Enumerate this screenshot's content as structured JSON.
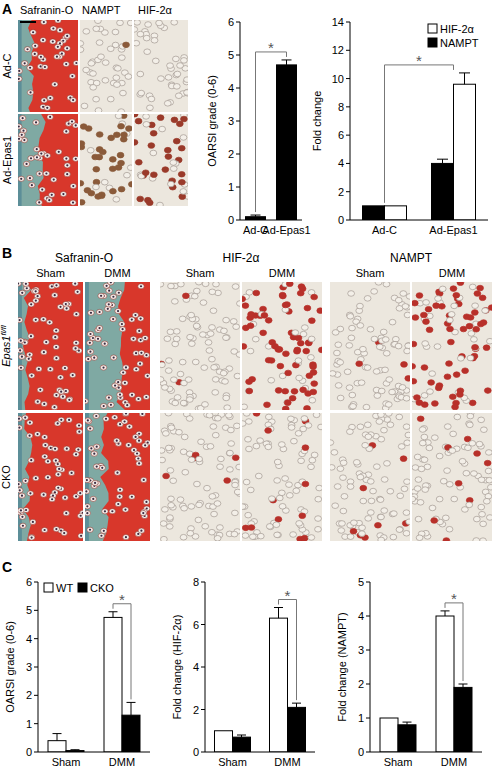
{
  "chart_data": [
    {
      "type": "bar",
      "y_label": "OARSI grade (0-6)",
      "categories": [
        "Ad-C",
        "Ad-Epas1"
      ],
      "values": [
        0.1,
        4.7
      ],
      "errors": [
        0.05,
        0.15
      ],
      "color": "#000000",
      "ylim": [
        0,
        6
      ],
      "yticks": [
        0,
        1,
        2,
        3,
        4,
        5,
        6
      ],
      "annotations": [
        {
          "text": "*",
          "categories": [
            "Ad-C",
            "Ad-Epas1"
          ]
        }
      ]
    },
    {
      "type": "bar",
      "y_label": "Fold change",
      "categories": [
        "Ad-C",
        "Ad-Epas1"
      ],
      "series": [
        {
          "name": "NAMPT",
          "color": "#000000",
          "values": [
            1,
            4
          ],
          "errors": [
            null,
            0.3
          ]
        },
        {
          "name": "HIF-2α",
          "color": "#ffffff",
          "values": [
            1,
            9.6
          ],
          "errors": [
            null,
            0.8
          ]
        }
      ],
      "ylim": [
        0,
        14
      ],
      "yticks": [
        0,
        2,
        4,
        6,
        8,
        10,
        12,
        14
      ],
      "legend": "top-right",
      "annotations": [
        {
          "text": "*",
          "categories": [
            "Ad-C",
            "Ad-Epas1"
          ]
        }
      ]
    },
    {
      "type": "bar",
      "y_label": "OARSI grade (0-6)",
      "categories": [
        "Sham",
        "DMM"
      ],
      "series": [
        {
          "name": "WT",
          "color": "#ffffff",
          "values": [
            0.4,
            4.75
          ],
          "errors": [
            0.25,
            0.2
          ]
        },
        {
          "name": "CKO",
          "color": "#000000",
          "values": [
            0.05,
            1.3
          ],
          "errors": [
            0.03,
            0.45
          ]
        }
      ],
      "ylim": [
        0,
        6
      ],
      "yticks": [
        0,
        1,
        2,
        3,
        4,
        5,
        6
      ],
      "legend": "top-left",
      "annotations": [
        {
          "text": "*",
          "categories": [
            "DMM"
          ]
        }
      ]
    },
    {
      "type": "bar",
      "y_label": "Fold change (HIF-2α)",
      "categories": [
        "Sham",
        "DMM"
      ],
      "series": [
        {
          "name": "WT",
          "color": "#ffffff",
          "values": [
            1,
            6.3
          ],
          "errors": [
            null,
            0.5
          ]
        },
        {
          "name": "CKO",
          "color": "#000000",
          "values": [
            0.7,
            2.1
          ],
          "errors": [
            0.1,
            0.2
          ]
        }
      ],
      "ylim": [
        0,
        8
      ],
      "yticks": [
        0,
        2,
        4,
        6,
        8
      ],
      "annotations": [
        {
          "text": "*",
          "categories": [
            "DMM"
          ]
        }
      ]
    },
    {
      "type": "bar",
      "y_label": "Fold change (NAMPT)",
      "categories": [
        "Sham",
        "DMM"
      ],
      "series": [
        {
          "name": "WT",
          "color": "#ffffff",
          "values": [
            1,
            4.0
          ],
          "errors": [
            null,
            0.15
          ]
        },
        {
          "name": "CKO",
          "color": "#000000",
          "values": [
            0.8,
            1.9
          ],
          "errors": [
            0.08,
            0.1
          ]
        }
      ],
      "ylim": [
        0,
        5
      ],
      "yticks": [
        0,
        1,
        2,
        3,
        4,
        5
      ],
      "annotations": [
        {
          "text": "*",
          "categories": [
            "DMM"
          ]
        }
      ]
    }
  ],
  "figure": {
    "panel_labels": [
      "A",
      "B",
      "C"
    ],
    "a_headers": [
      "Safranin-O",
      "NAMPT",
      "HIF-2α"
    ],
    "a_rows": [
      "Ad-C",
      "Ad-Epas1"
    ],
    "b_headers": [
      "Safranin-O",
      "HIF-2α",
      "NAMPT"
    ],
    "b_conditions": [
      "Sham",
      "DMM"
    ],
    "b_rows": [
      {
        "text": "Epas1",
        "sup": "fl/fl"
      },
      {
        "text": "CKO"
      }
    ]
  }
}
